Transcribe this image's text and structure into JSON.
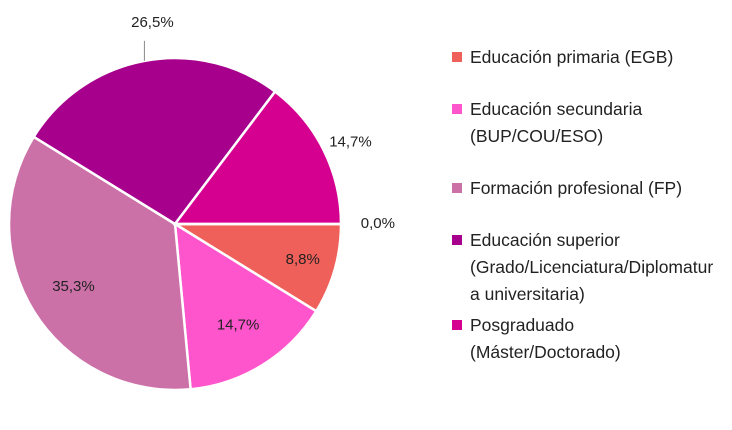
{
  "chart_data": {
    "type": "pie",
    "categories": [
      "Educación primaria (EGB)",
      "Educación secundaria (BUP/COU/ESO)",
      "Formación profesional (FP)",
      "Educación superior (Grado/Licenciatura/Diplomatura universitaria)",
      "Posgraduado (Máster/Doctorado)",
      null
    ],
    "values": [
      8.8,
      14.7,
      35.3,
      26.5,
      14.7,
      0.0
    ],
    "value_labels": [
      "8,8%",
      "14,7%",
      "35,3%",
      "26,5%",
      "14,7%",
      "0,0%"
    ],
    "colors": [
      "#F0605A",
      "#FF55CC",
      "#CC70A8",
      "#A6008C",
      "#D60090",
      "#7030A0"
    ],
    "legend": "right"
  }
}
